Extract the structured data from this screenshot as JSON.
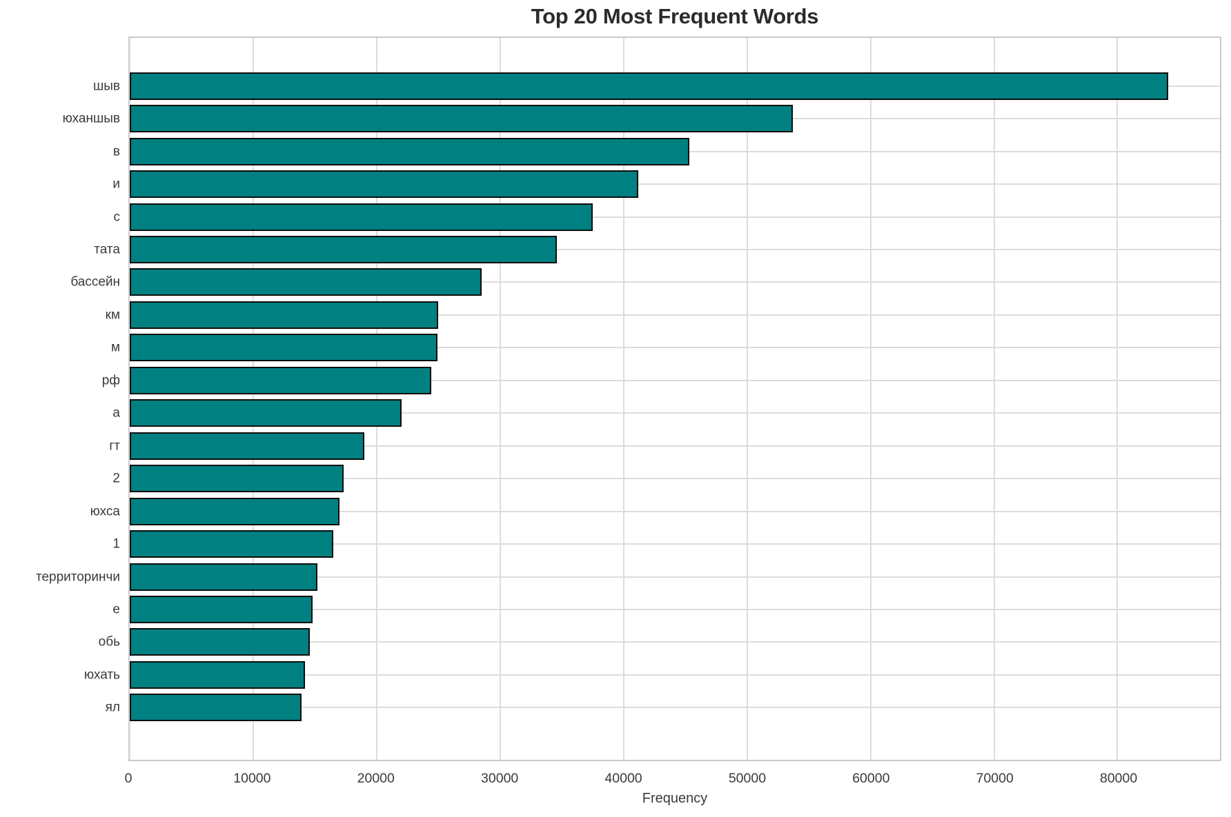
{
  "chart_data": {
    "type": "bar",
    "orientation": "horizontal",
    "title": "Top 20 Most Frequent Words",
    "xlabel": "Frequency",
    "ylabel": "",
    "categories": [
      "шыв",
      "юханшыв",
      "в",
      "и",
      "с",
      "тата",
      "бассейн",
      "км",
      "м",
      "рф",
      "а",
      "гт",
      "2",
      "юхса",
      "1",
      "территоринчи",
      "е",
      "обь",
      "юхать",
      "ял"
    ],
    "values": [
      84100,
      53700,
      45300,
      41200,
      37500,
      34600,
      28500,
      25000,
      24900,
      24400,
      22000,
      19000,
      17300,
      17000,
      16500,
      15200,
      14800,
      14600,
      14200,
      13900
    ],
    "xlim": [
      0,
      88300
    ],
    "xticks": [
      0,
      10000,
      20000,
      30000,
      40000,
      50000,
      60000,
      70000,
      80000
    ],
    "xtick_labels": [
      "0",
      "10000",
      "20000",
      "30000",
      "40000",
      "50000",
      "60000",
      "70000",
      "80000"
    ],
    "grid": true,
    "legend_position": "none",
    "bar_color": "#008080",
    "bar_edge_color": "#0d0d0d",
    "grid_color": "#dcdcdc",
    "spine_color": "#c9c9c9",
    "title_color": "#2b2b2b",
    "tick_color": "#3a3a3a"
  }
}
